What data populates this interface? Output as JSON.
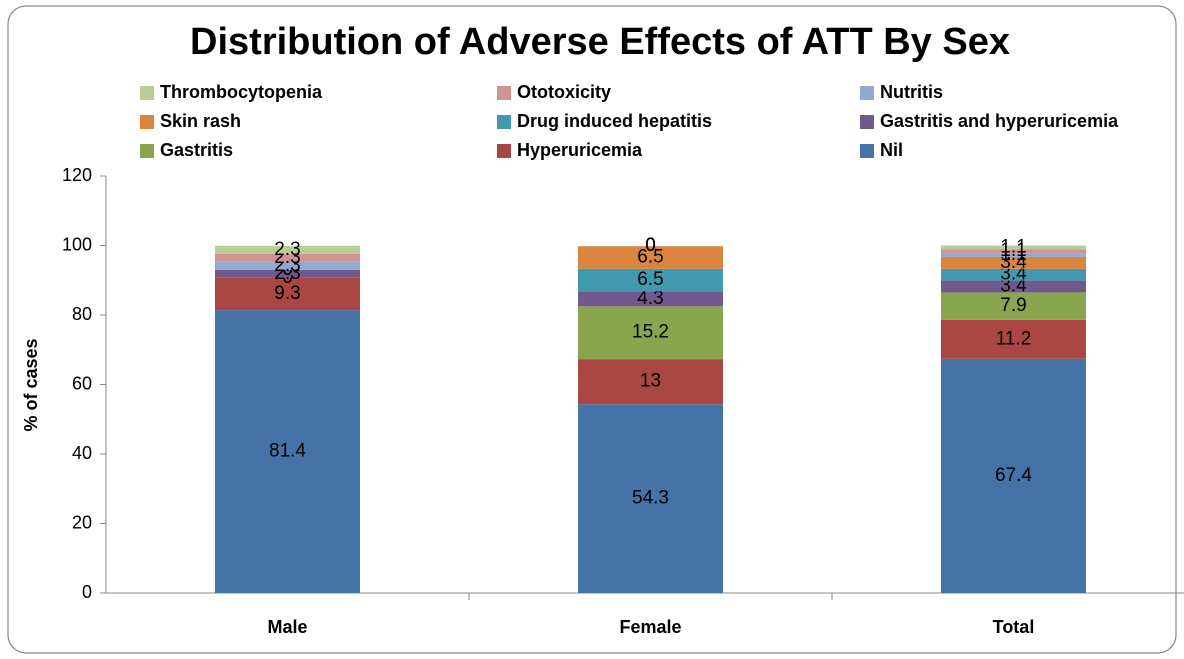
{
  "chart_data": {
    "type": "stacked_bar",
    "title": "Distribution of Adverse Effects of ATT  By Sex",
    "y_label": "% of cases",
    "categories": [
      "Male",
      "Female",
      "Total"
    ],
    "series": [
      {
        "name": "Nil",
        "color": "#4572a7",
        "values": [
          81.4,
          54.3,
          67.4
        ]
      },
      {
        "name": "Hyperuricemia",
        "color": "#aa4643",
        "values": [
          9.3,
          13,
          11.2
        ]
      },
      {
        "name": "Gastritis",
        "color": "#89a54e",
        "values": [
          0,
          15.2,
          7.9
        ]
      },
      {
        "name": "Gastritis and hyperuricemia",
        "color": "#71588f",
        "values": [
          2.3,
          4.3,
          3.4
        ]
      },
      {
        "name": "Drug induced hepatitis",
        "color": "#4198af",
        "values": [
          0,
          6.5,
          3.4
        ]
      },
      {
        "name": "Skin rash",
        "color": "#db843d",
        "values": [
          0,
          6.5,
          3.4
        ]
      },
      {
        "name": "Nutritis",
        "color": "#93a9cf",
        "values": [
          2.3,
          0,
          1.1
        ]
      },
      {
        "name": "Ototoxicity",
        "color": "#d19392",
        "values": [
          2.3,
          0,
          1.1
        ]
      },
      {
        "name": "Thrombocytopenia",
        "color": "#b9cd96",
        "values": [
          2.3,
          0,
          1.1
        ]
      }
    ],
    "ylim": [
      0,
      120
    ],
    "yticks": [
      0,
      20,
      40,
      60,
      80,
      100,
      120
    ],
    "grid": false
  }
}
